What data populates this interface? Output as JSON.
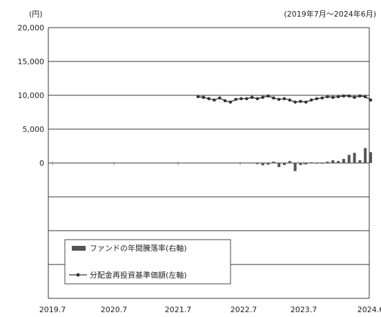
{
  "chart_data": {
    "type": "line",
    "yunit": "(円)",
    "period": "(2019年7月～2024年6月)",
    "x_ticks": [
      "2019.7",
      "2020.7",
      "2021.7",
      "2022.7",
      "2023.7",
      "2024.6"
    ],
    "y_ticks": [
      "20,000",
      "15,000",
      "10,000",
      "5,000",
      "0"
    ],
    "ylim": [
      0,
      20000
    ],
    "grid": true,
    "legend_position": "bottom-left",
    "series": [
      {
        "name": "分配金再投資基準価額(左軸)",
        "type": "line",
        "color": "#333333",
        "x": [
          "2021-10",
          "2021-11",
          "2021-12",
          "2022-01",
          "2022-02",
          "2022-03",
          "2022-04",
          "2022-05",
          "2022-06",
          "2022-07",
          "2022-08",
          "2022-09",
          "2022-10",
          "2022-11",
          "2022-12",
          "2023-01",
          "2023-02",
          "2023-03",
          "2023-04",
          "2023-05",
          "2023-06",
          "2023-07",
          "2023-08",
          "2023-09",
          "2023-10",
          "2023-11",
          "2023-12",
          "2024-01",
          "2024-02",
          "2024-03",
          "2024-04",
          "2024-05",
          "2024-06"
        ],
        "values": [
          9800,
          9700,
          9500,
          9300,
          9600,
          9200,
          9000,
          9400,
          9500,
          9500,
          9700,
          9500,
          9700,
          9900,
          9600,
          9400,
          9500,
          9300,
          9000,
          9100,
          9000,
          9300,
          9500,
          9600,
          9800,
          9700,
          9800,
          9900,
          9900,
          9700,
          9900,
          9800,
          9300
        ]
      },
      {
        "name": "ファンドの年間騰落率(右軸)",
        "type": "bar",
        "color": "#555555",
        "x": [
          "2022-09",
          "2022-10",
          "2022-11",
          "2022-12",
          "2023-01",
          "2023-02",
          "2023-03",
          "2023-04",
          "2023-05",
          "2023-06",
          "2023-07",
          "2023-08",
          "2023-09",
          "2023-10",
          "2023-11",
          "2023-12",
          "2024-01",
          "2024-02",
          "2024-03",
          "2024-04",
          "2024-05",
          "2024-06"
        ],
        "values": [
          -150,
          -350,
          -250,
          200,
          -600,
          -300,
          300,
          -1200,
          -300,
          -200,
          100,
          -100,
          -100,
          200,
          400,
          300,
          600,
          1200,
          1500,
          400,
          2200,
          1600
        ]
      }
    ]
  }
}
